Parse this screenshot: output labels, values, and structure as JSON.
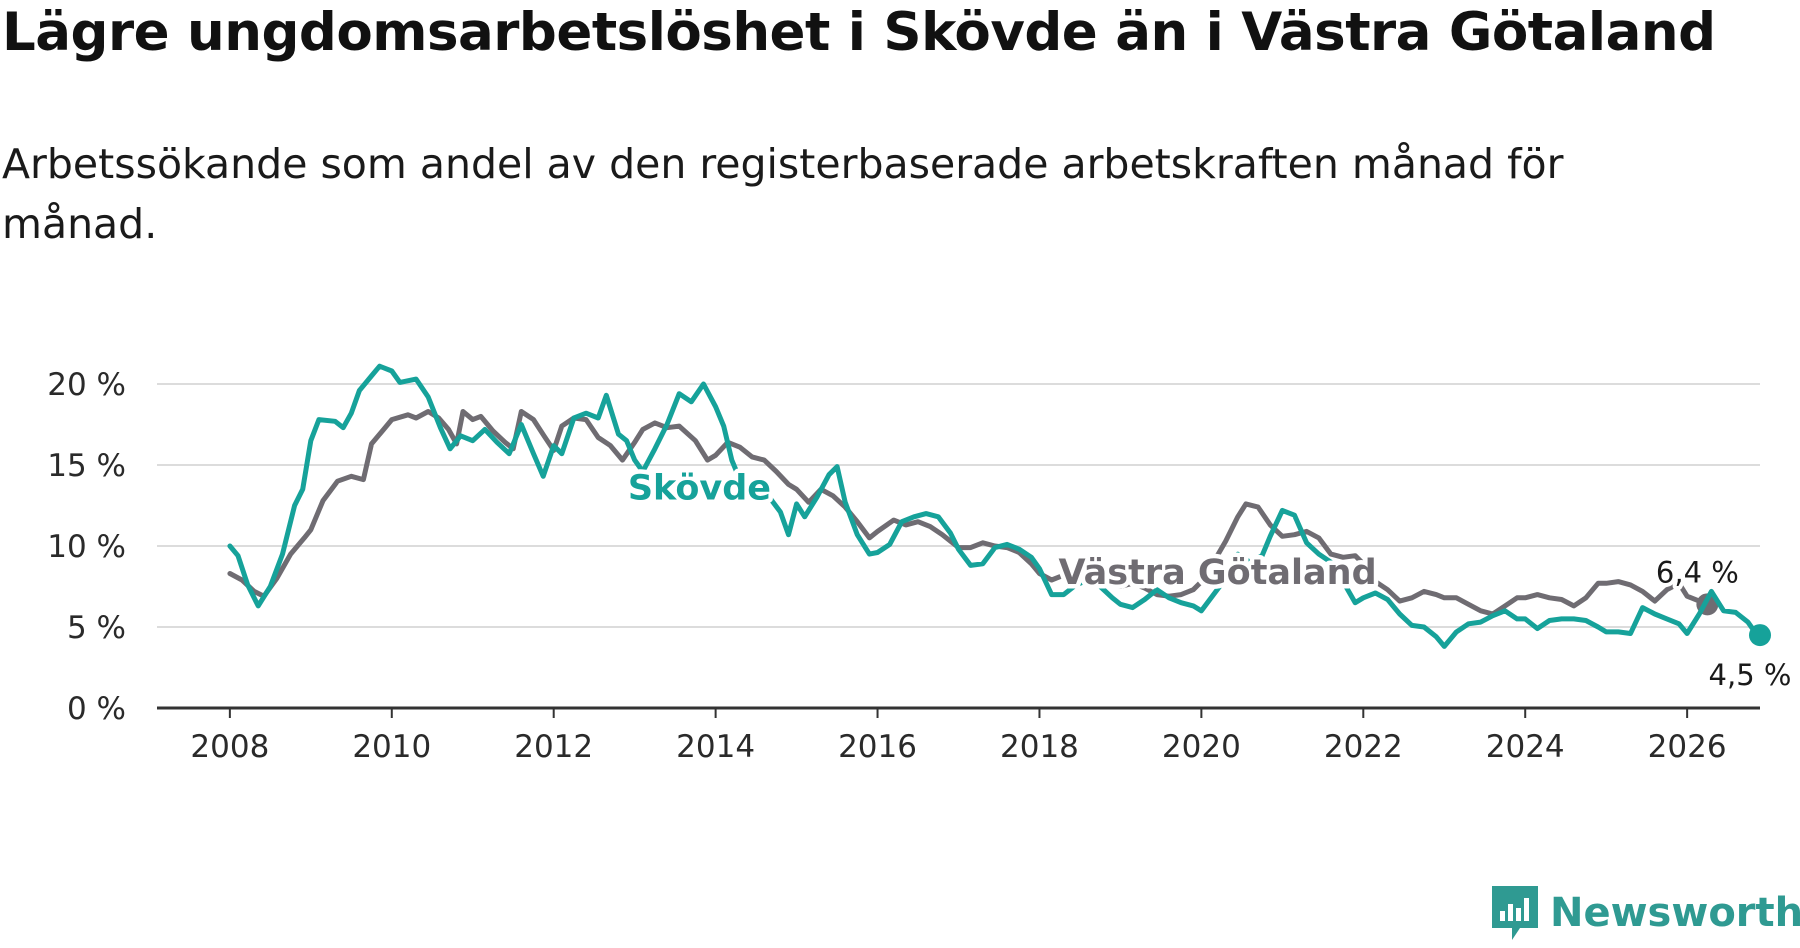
{
  "title": "Lägre ungdomsarbetslöshet i Skövde än i Västra Götaland",
  "subtitle": "Arbetssökande som andel av den registerbaserade arbetskraften månad för månad.",
  "brand": {
    "name": "Newsworthy",
    "color": "#2f9a92"
  },
  "chart_data": {
    "type": "line",
    "title": "Lägre ungdomsarbetslöshet i Skövde än i Västra Götaland",
    "xlabel": "",
    "ylabel": "",
    "xlim": [
      2007.1,
      2026.9
    ],
    "ylim": [
      0,
      20
    ],
    "yticks": [
      0,
      5,
      10,
      15,
      20
    ],
    "ytick_labels": [
      "0 %",
      "5 %",
      "10 %",
      "15 %",
      "20 %"
    ],
    "xticks": [
      2008,
      2010,
      2012,
      2014,
      2016,
      2018,
      2020,
      2022,
      2024,
      2026
    ],
    "xtick_labels": [
      "2008",
      "2010",
      "2012",
      "2014",
      "2016",
      "2018",
      "2020",
      "2022",
      "2024",
      "2026"
    ],
    "grid": true,
    "series": [
      {
        "name": "Västra Götaland",
        "color": "#6f6c72",
        "end_label": "6,4 %",
        "points": [
          [
            2008.0,
            8.3
          ],
          [
            2008.15,
            7.9
          ],
          [
            2008.3,
            7.2
          ],
          [
            2008.42,
            6.9
          ],
          [
            2008.58,
            8.0
          ],
          [
            2008.75,
            9.5
          ],
          [
            2008.92,
            10.5
          ],
          [
            2009.0,
            11.0
          ],
          [
            2009.15,
            12.8
          ],
          [
            2009.33,
            14.0
          ],
          [
            2009.5,
            14.3
          ],
          [
            2009.65,
            14.1
          ],
          [
            2009.75,
            16.3
          ],
          [
            2009.9,
            17.2
          ],
          [
            2010.0,
            17.8
          ],
          [
            2010.2,
            18.1
          ],
          [
            2010.3,
            17.9
          ],
          [
            2010.45,
            18.3
          ],
          [
            2010.58,
            17.9
          ],
          [
            2010.7,
            17.2
          ],
          [
            2010.8,
            16.3
          ],
          [
            2010.88,
            18.3
          ],
          [
            2011.0,
            17.8
          ],
          [
            2011.1,
            18.0
          ],
          [
            2011.25,
            17.1
          ],
          [
            2011.4,
            16.4
          ],
          [
            2011.5,
            16.0
          ],
          [
            2011.6,
            18.3
          ],
          [
            2011.75,
            17.8
          ],
          [
            2011.88,
            16.8
          ],
          [
            2012.0,
            15.9
          ],
          [
            2012.1,
            17.4
          ],
          [
            2012.25,
            17.9
          ],
          [
            2012.4,
            17.8
          ],
          [
            2012.55,
            16.7
          ],
          [
            2012.7,
            16.2
          ],
          [
            2012.85,
            15.3
          ],
          [
            2013.0,
            16.4
          ],
          [
            2013.1,
            17.2
          ],
          [
            2013.25,
            17.6
          ],
          [
            2013.4,
            17.3
          ],
          [
            2013.55,
            17.4
          ],
          [
            2013.75,
            16.5
          ],
          [
            2013.9,
            15.3
          ],
          [
            2014.0,
            15.6
          ],
          [
            2014.15,
            16.4
          ],
          [
            2014.3,
            16.1
          ],
          [
            2014.45,
            15.5
          ],
          [
            2014.6,
            15.3
          ],
          [
            2014.75,
            14.6
          ],
          [
            2014.9,
            13.8
          ],
          [
            2015.0,
            13.5
          ],
          [
            2015.15,
            12.7
          ],
          [
            2015.3,
            13.5
          ],
          [
            2015.45,
            13.1
          ],
          [
            2015.6,
            12.4
          ],
          [
            2015.75,
            11.5
          ],
          [
            2015.9,
            10.5
          ],
          [
            2016.0,
            10.9
          ],
          [
            2016.2,
            11.6
          ],
          [
            2016.35,
            11.3
          ],
          [
            2016.5,
            11.5
          ],
          [
            2016.65,
            11.2
          ],
          [
            2016.8,
            10.7
          ],
          [
            2017.0,
            9.9
          ],
          [
            2017.15,
            9.9
          ],
          [
            2017.3,
            10.2
          ],
          [
            2017.45,
            10.0
          ],
          [
            2017.6,
            9.9
          ],
          [
            2017.75,
            9.6
          ],
          [
            2017.9,
            8.9
          ],
          [
            2018.0,
            8.3
          ],
          [
            2018.15,
            7.9
          ],
          [
            2018.3,
            8.2
          ],
          [
            2018.45,
            8.4
          ],
          [
            2018.6,
            8.1
          ],
          [
            2018.75,
            7.9
          ],
          [
            2018.9,
            7.6
          ],
          [
            2019.0,
            7.5
          ],
          [
            2019.15,
            7.7
          ],
          [
            2019.3,
            7.4
          ],
          [
            2019.45,
            7.0
          ],
          [
            2019.6,
            6.9
          ],
          [
            2019.75,
            7.0
          ],
          [
            2019.9,
            7.3
          ],
          [
            2020.0,
            7.8
          ],
          [
            2020.15,
            9.0
          ],
          [
            2020.3,
            10.3
          ],
          [
            2020.45,
            11.8
          ],
          [
            2020.55,
            12.6
          ],
          [
            2020.7,
            12.4
          ],
          [
            2020.85,
            11.3
          ],
          [
            2021.0,
            10.6
          ],
          [
            2021.15,
            10.7
          ],
          [
            2021.3,
            10.9
          ],
          [
            2021.45,
            10.5
          ],
          [
            2021.6,
            9.5
          ],
          [
            2021.75,
            9.3
          ],
          [
            2021.9,
            9.4
          ],
          [
            2022.0,
            8.9
          ],
          [
            2022.15,
            7.8
          ],
          [
            2022.3,
            7.3
          ],
          [
            2022.45,
            6.6
          ],
          [
            2022.6,
            6.8
          ],
          [
            2022.75,
            7.2
          ],
          [
            2022.9,
            7.0
          ],
          [
            2023.0,
            6.8
          ],
          [
            2023.15,
            6.8
          ],
          [
            2023.3,
            6.4
          ],
          [
            2023.45,
            6.0
          ],
          [
            2023.6,
            5.8
          ],
          [
            2023.75,
            6.3
          ],
          [
            2023.9,
            6.8
          ],
          [
            2024.0,
            6.8
          ],
          [
            2024.15,
            7.0
          ],
          [
            2024.3,
            6.8
          ],
          [
            2024.45,
            6.7
          ],
          [
            2024.6,
            6.3
          ],
          [
            2024.75,
            6.8
          ],
          [
            2024.9,
            7.7
          ],
          [
            2025.0,
            7.7
          ],
          [
            2025.15,
            7.8
          ],
          [
            2025.3,
            7.6
          ],
          [
            2025.45,
            7.2
          ],
          [
            2025.6,
            6.6
          ],
          [
            2025.75,
            7.3
          ],
          [
            2025.9,
            7.7
          ],
          [
            2026.0,
            6.9
          ],
          [
            2026.15,
            6.6
          ],
          [
            2026.25,
            6.4
          ]
        ]
      },
      {
        "name": "Skövde",
        "color": "#16a29a",
        "end_label": "4,5 %",
        "points": [
          [
            2008.0,
            10.0
          ],
          [
            2008.1,
            9.4
          ],
          [
            2008.22,
            7.6
          ],
          [
            2008.35,
            6.3
          ],
          [
            2008.5,
            7.5
          ],
          [
            2008.65,
            9.5
          ],
          [
            2008.8,
            12.5
          ],
          [
            2008.9,
            13.5
          ],
          [
            2009.0,
            16.5
          ],
          [
            2009.1,
            17.8
          ],
          [
            2009.3,
            17.7
          ],
          [
            2009.4,
            17.3
          ],
          [
            2009.5,
            18.2
          ],
          [
            2009.6,
            19.6
          ],
          [
            2009.75,
            20.5
          ],
          [
            2009.85,
            21.1
          ],
          [
            2010.0,
            20.8
          ],
          [
            2010.1,
            20.1
          ],
          [
            2010.3,
            20.3
          ],
          [
            2010.45,
            19.2
          ],
          [
            2010.6,
            17.3
          ],
          [
            2010.72,
            16.0
          ],
          [
            2010.85,
            16.8
          ],
          [
            2011.0,
            16.5
          ],
          [
            2011.15,
            17.2
          ],
          [
            2011.3,
            16.4
          ],
          [
            2011.45,
            15.7
          ],
          [
            2011.6,
            17.5
          ],
          [
            2011.75,
            15.7
          ],
          [
            2011.87,
            14.3
          ],
          [
            2012.0,
            16.2
          ],
          [
            2012.1,
            15.7
          ],
          [
            2012.25,
            17.9
          ],
          [
            2012.4,
            18.2
          ],
          [
            2012.55,
            17.9
          ],
          [
            2012.65,
            19.3
          ],
          [
            2012.8,
            16.9
          ],
          [
            2012.9,
            16.5
          ],
          [
            2013.0,
            15.3
          ],
          [
            2013.1,
            14.6
          ],
          [
            2013.25,
            16.0
          ],
          [
            2013.4,
            17.5
          ],
          [
            2013.55,
            19.4
          ],
          [
            2013.7,
            18.9
          ],
          [
            2013.85,
            20.0
          ],
          [
            2014.0,
            18.6
          ],
          [
            2014.1,
            17.4
          ],
          [
            2014.2,
            15.3
          ],
          [
            2014.35,
            13.5
          ],
          [
            2014.5,
            13.4
          ],
          [
            2014.65,
            13.1
          ],
          [
            2014.8,
            12.1
          ],
          [
            2014.9,
            10.7
          ],
          [
            2015.0,
            12.6
          ],
          [
            2015.1,
            11.8
          ],
          [
            2015.25,
            13.0
          ],
          [
            2015.4,
            14.4
          ],
          [
            2015.5,
            14.9
          ],
          [
            2015.6,
            12.7
          ],
          [
            2015.75,
            10.7
          ],
          [
            2015.9,
            9.5
          ],
          [
            2016.0,
            9.6
          ],
          [
            2016.15,
            10.1
          ],
          [
            2016.3,
            11.5
          ],
          [
            2016.45,
            11.8
          ],
          [
            2016.6,
            12.0
          ],
          [
            2016.75,
            11.8
          ],
          [
            2016.9,
            10.8
          ],
          [
            2017.0,
            9.8
          ],
          [
            2017.15,
            8.8
          ],
          [
            2017.3,
            8.9
          ],
          [
            2017.45,
            9.9
          ],
          [
            2017.6,
            10.1
          ],
          [
            2017.75,
            9.8
          ],
          [
            2017.9,
            9.3
          ],
          [
            2018.0,
            8.6
          ],
          [
            2018.15,
            7.0
          ],
          [
            2018.3,
            7.0
          ],
          [
            2018.45,
            7.6
          ],
          [
            2018.6,
            7.9
          ],
          [
            2018.75,
            7.5
          ],
          [
            2018.9,
            6.8
          ],
          [
            2019.0,
            6.4
          ],
          [
            2019.15,
            6.2
          ],
          [
            2019.3,
            6.7
          ],
          [
            2019.45,
            7.3
          ],
          [
            2019.6,
            6.8
          ],
          [
            2019.75,
            6.5
          ],
          [
            2019.9,
            6.3
          ],
          [
            2020.0,
            6.0
          ],
          [
            2020.15,
            7.0
          ],
          [
            2020.3,
            8.0
          ],
          [
            2020.45,
            9.5
          ],
          [
            2020.6,
            9.0
          ],
          [
            2020.75,
            9.4
          ],
          [
            2020.85,
            10.6
          ],
          [
            2021.0,
            12.2
          ],
          [
            2021.15,
            11.9
          ],
          [
            2021.3,
            10.2
          ],
          [
            2021.45,
            9.5
          ],
          [
            2021.6,
            9.0
          ],
          [
            2021.75,
            7.8
          ],
          [
            2021.9,
            6.5
          ],
          [
            2022.0,
            6.8
          ],
          [
            2022.15,
            7.1
          ],
          [
            2022.3,
            6.7
          ],
          [
            2022.45,
            5.8
          ],
          [
            2022.6,
            5.1
          ],
          [
            2022.75,
            5.0
          ],
          [
            2022.9,
            4.4
          ],
          [
            2023.0,
            3.8
          ],
          [
            2023.15,
            4.7
          ],
          [
            2023.3,
            5.2
          ],
          [
            2023.45,
            5.3
          ],
          [
            2023.6,
            5.7
          ],
          [
            2023.75,
            6.0
          ],
          [
            2023.9,
            5.5
          ],
          [
            2024.0,
            5.5
          ],
          [
            2024.15,
            4.9
          ],
          [
            2024.3,
            5.4
          ],
          [
            2024.45,
            5.5
          ],
          [
            2024.6,
            5.5
          ],
          [
            2024.75,
            5.4
          ],
          [
            2024.9,
            5.0
          ],
          [
            2025.0,
            4.7
          ],
          [
            2025.15,
            4.7
          ],
          [
            2025.3,
            4.6
          ],
          [
            2025.45,
            6.2
          ],
          [
            2025.6,
            5.8
          ],
          [
            2025.75,
            5.5
          ],
          [
            2025.9,
            5.2
          ],
          [
            2026.0,
            4.6
          ],
          [
            2026.15,
            5.8
          ],
          [
            2026.3,
            7.2
          ],
          [
            2026.45,
            6.0
          ],
          [
            2026.6,
            5.9
          ],
          [
            2026.75,
            5.3
          ],
          [
            2026.85,
            4.6
          ],
          [
            2026.9,
            4.5
          ]
        ]
      }
    ],
    "annotations": [
      {
        "text": "Skövde",
        "series": "Skövde",
        "x": 2013.8,
        "y": 13.6
      },
      {
        "text": "Västra Götaland",
        "series": "Västra Götaland",
        "x": 2020.2,
        "y": 8.4
      }
    ]
  }
}
